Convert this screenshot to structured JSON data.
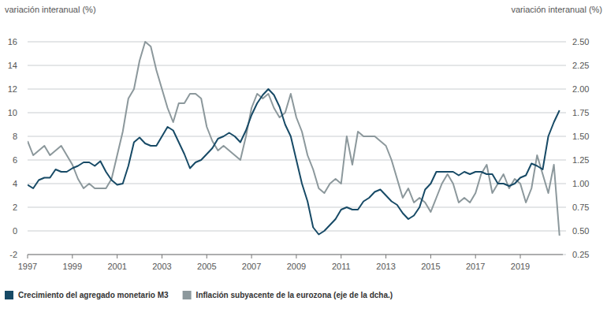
{
  "chart_data": {
    "type": "line",
    "y_label": "variación interanual (%)",
    "y2_label": "variación interanual (%)",
    "x": [
      1997.0,
      1997.25,
      1997.5,
      1997.75,
      1998.0,
      1998.25,
      1998.5,
      1998.75,
      1999.0,
      1999.25,
      1999.5,
      1999.75,
      2000.0,
      2000.25,
      2000.5,
      2000.75,
      2001.0,
      2001.25,
      2001.5,
      2001.75,
      2002.0,
      2002.25,
      2002.5,
      2002.75,
      2003.0,
      2003.25,
      2003.5,
      2003.75,
      2004.0,
      2004.25,
      2004.5,
      2004.75,
      2005.0,
      2005.25,
      2005.5,
      2005.75,
      2006.0,
      2006.25,
      2006.5,
      2006.75,
      2007.0,
      2007.25,
      2007.5,
      2007.75,
      2008.0,
      2008.25,
      2008.5,
      2008.75,
      2009.0,
      2009.25,
      2009.5,
      2009.75,
      2010.0,
      2010.25,
      2010.5,
      2010.75,
      2011.0,
      2011.25,
      2011.5,
      2011.75,
      2012.0,
      2012.25,
      2012.5,
      2012.75,
      2013.0,
      2013.25,
      2013.5,
      2013.75,
      2014.0,
      2014.25,
      2014.5,
      2014.75,
      2015.0,
      2015.25,
      2015.5,
      2015.75,
      2016.0,
      2016.25,
      2016.5,
      2016.75,
      2017.0,
      2017.25,
      2017.5,
      2017.75,
      2018.0,
      2018.25,
      2018.5,
      2018.75,
      2019.0,
      2019.25,
      2019.5,
      2019.75,
      2020.0,
      2020.25,
      2020.5,
      2020.75
    ],
    "series": [
      {
        "name": "Crecimiento del agregado monetario M3",
        "color": "#174a66",
        "values": [
          3.9,
          3.6,
          4.3,
          4.5,
          4.5,
          5.2,
          5.0,
          5.0,
          5.3,
          5.5,
          5.8,
          5.8,
          5.5,
          5.9,
          5.0,
          4.3,
          3.9,
          4.0,
          5.5,
          7.5,
          7.9,
          7.4,
          7.2,
          7.2,
          8.0,
          8.8,
          8.5,
          7.5,
          6.5,
          5.3,
          5.8,
          6.0,
          6.5,
          7.0,
          7.8,
          8.0,
          8.3,
          8.0,
          7.5,
          8.5,
          9.8,
          10.8,
          11.5,
          12.0,
          11.5,
          10.5,
          9.0,
          8.0,
          6.0,
          4.0,
          2.5,
          0.3,
          -0.3,
          0.0,
          0.5,
          1.0,
          1.8,
          2.0,
          1.8,
          1.8,
          2.5,
          2.8,
          3.3,
          3.5,
          3.0,
          2.5,
          2.2,
          1.5,
          1.0,
          1.3,
          2.0,
          3.5,
          4.0,
          5.0,
          5.0,
          5.0,
          5.0,
          4.7,
          5.0,
          4.8,
          5.0,
          5.0,
          4.8,
          4.8,
          4.0,
          4.0,
          3.8,
          4.0,
          4.5,
          4.7,
          5.7,
          5.5,
          5.2,
          8.0,
          9.2,
          10.2
        ]
      },
      {
        "name": "Inflación subyacente de la eurozona (eje de la dcha.)",
        "color": "#8c989c",
        "axis": "y2",
        "values": [
          1.45,
          1.3,
          1.35,
          1.4,
          1.3,
          1.35,
          1.4,
          1.3,
          1.2,
          1.05,
          0.95,
          1.0,
          0.95,
          0.95,
          0.95,
          1.05,
          1.3,
          1.55,
          1.9,
          2.0,
          2.3,
          2.5,
          2.45,
          2.2,
          2.0,
          1.8,
          1.65,
          1.85,
          1.85,
          1.95,
          1.95,
          1.9,
          1.6,
          1.45,
          1.35,
          1.4,
          1.35,
          1.3,
          1.25,
          1.5,
          1.8,
          1.95,
          1.9,
          1.95,
          1.8,
          1.7,
          1.75,
          1.95,
          1.7,
          1.55,
          1.3,
          1.15,
          0.95,
          0.9,
          1.0,
          1.05,
          1.0,
          1.5,
          1.2,
          1.55,
          1.5,
          1.5,
          1.5,
          1.45,
          1.4,
          1.25,
          1.05,
          0.85,
          0.95,
          0.8,
          0.85,
          0.8,
          0.7,
          0.85,
          1.0,
          1.1,
          1.0,
          0.8,
          0.85,
          0.8,
          0.9,
          1.1,
          1.2,
          0.9,
          1.0,
          1.1,
          0.95,
          1.05,
          1.0,
          0.8,
          0.95,
          1.3,
          1.1,
          0.9,
          1.2,
          0.45
        ]
      }
    ],
    "xlim": [
      1997,
      2020.9
    ],
    "xticks": [
      1997,
      1999,
      2001,
      2003,
      2005,
      2007,
      2009,
      2011,
      2013,
      2015,
      2017,
      2019
    ],
    "ylim": [
      -2,
      16
    ],
    "yticks": [
      -2,
      0,
      2,
      4,
      6,
      8,
      10,
      12,
      14,
      16
    ],
    "y2lim": [
      0.25,
      2.5
    ],
    "y2ticks": [
      {
        "value": 0.25,
        "label": "0.25"
      },
      {
        "value": 0.5,
        "label": "0.50"
      },
      {
        "value": 0.75,
        "label": "0.75"
      },
      {
        "value": 1,
        "label": "1.00"
      },
      {
        "value": 1.25,
        "label": "1.25"
      },
      {
        "value": 1.5,
        "label": "1.50"
      },
      {
        "value": 1.75,
        "label": "1.75"
      },
      {
        "value": 2,
        "label": "2.00"
      },
      {
        "value": 2.25,
        "label": "2.25"
      },
      {
        "value": 2.5,
        "label": "2.50"
      }
    ],
    "grid": true,
    "legend": "bottom-left"
  }
}
